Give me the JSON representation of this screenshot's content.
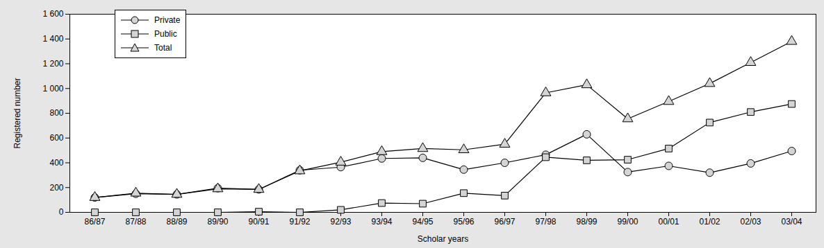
{
  "chart_data": {
    "type": "line",
    "x_label": "Scholar years",
    "y_label": "Registered number",
    "categories": [
      "86/87",
      "87/88",
      "88/89",
      "89/90",
      "90/91",
      "91/92",
      "92/93",
      "93/94",
      "94/95",
      "95/96",
      "96/97",
      "97/98",
      "98/99",
      "99/00",
      "00/01",
      "01/02",
      "02/03",
      "03/04"
    ],
    "series": [
      {
        "name": "Private",
        "color": "#000000",
        "marker": "circle",
        "values": [
          120,
          150,
          145,
          195,
          185,
          340,
          365,
          435,
          440,
          345,
          400,
          465,
          630,
          325,
          375,
          320,
          395,
          495
        ]
      },
      {
        "name": "Public",
        "color": "#000000",
        "marker": "square",
        "values": [
          0,
          0,
          0,
          0,
          5,
          0,
          20,
          75,
          70,
          155,
          135,
          445,
          420,
          425,
          515,
          725,
          810,
          875
        ]
      },
      {
        "name": "Total",
        "color": "#000000",
        "marker": "triangle",
        "values": [
          120,
          155,
          145,
          190,
          185,
          335,
          405,
          490,
          515,
          505,
          550,
          965,
          1030,
          755,
          895,
          1040,
          1210,
          1380
        ]
      }
    ],
    "ylim": [
      0,
      1600
    ],
    "yticks": [
      0,
      200,
      400,
      600,
      800,
      {
        "value": 1000,
        "label": "1 000"
      },
      {
        "value": 1200,
        "label": "1 200"
      },
      {
        "value": 1400,
        "label": "1 400"
      },
      {
        "value": 1600,
        "label": "1 600"
      }
    ],
    "grid": false,
    "legend": "top-left"
  }
}
